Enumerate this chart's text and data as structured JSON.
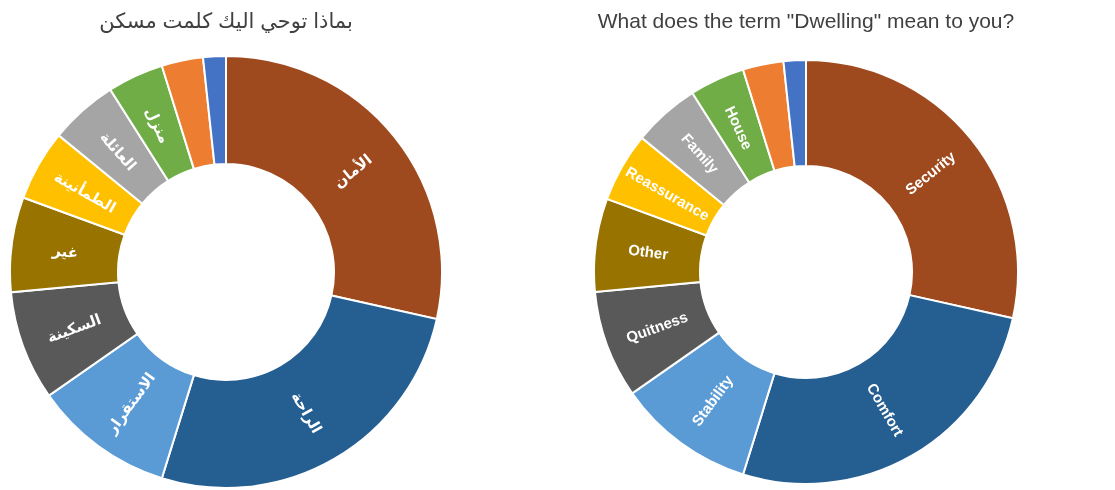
{
  "chart_data": [
    {
      "type": "donut",
      "title": "بماذا توحي اليك كلمت مسكن",
      "categories": [
        "الأمان",
        "الراحة",
        "الاستقرار",
        "السكينة",
        "غير",
        "الطمأنينة",
        "العائلة",
        "منزل",
        null,
        null
      ],
      "values": [
        28.5,
        26.3,
        10.5,
        8.2,
        7.1,
        5.3,
        5.1,
        4.2,
        3.1,
        1.7
      ],
      "colors": [
        "#9e4a1e",
        "#255e91",
        "#5b9bd5",
        "#595959",
        "#997300",
        "#ffc000",
        "#a5a5a5",
        "#70ad47",
        "#ed7d31",
        "#4472c4"
      ]
    },
    {
      "type": "donut",
      "title": "What does the term \"Dwelling\"  mean to you?",
      "categories": [
        "Security",
        "Comfort",
        "Stability",
        "Quitness",
        "Other",
        "Reassurance",
        "Family",
        "House",
        null,
        null
      ],
      "values": [
        28.5,
        26.3,
        10.5,
        8.2,
        7.1,
        5.3,
        5.1,
        4.2,
        3.1,
        1.7
      ],
      "colors": [
        "#9e4a1e",
        "#255e91",
        "#5b9bd5",
        "#595959",
        "#997300",
        "#ffc000",
        "#a5a5a5",
        "#70ad47",
        "#ed7d31",
        "#4472c4"
      ]
    }
  ]
}
